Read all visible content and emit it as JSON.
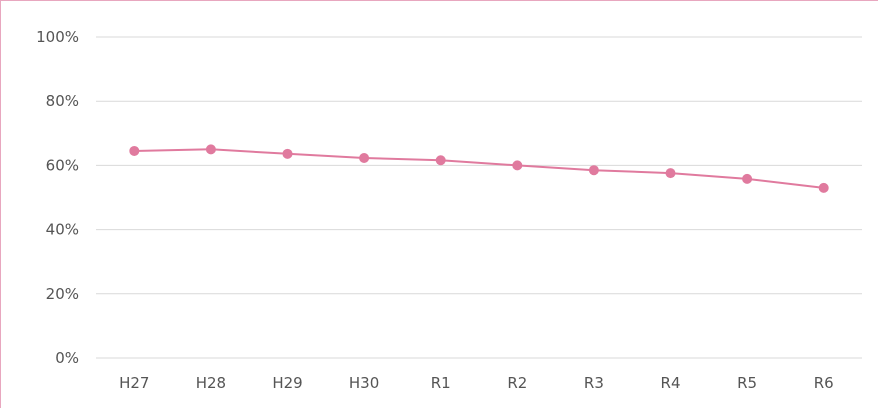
{
  "chart_data": {
    "type": "line",
    "title": "",
    "xlabel": "",
    "ylabel": "",
    "categories": [
      "H27",
      "H28",
      "H29",
      "H30",
      "R1",
      "R2",
      "R3",
      "R4",
      "R5",
      "R6"
    ],
    "series": [
      {
        "values": [
          64.5,
          65.0,
          63.6,
          62.3,
          61.6,
          60.0,
          58.5,
          57.6,
          55.8,
          53.0
        ],
        "color": "#e07a9e"
      }
    ],
    "ylim": [
      0,
      100
    ],
    "yticks": [
      0,
      20,
      40,
      60,
      80,
      100
    ],
    "ytick_labels": [
      "0%",
      "20%",
      "40%",
      "60%",
      "80%",
      "100%"
    ],
    "grid": true,
    "legend": "none"
  }
}
